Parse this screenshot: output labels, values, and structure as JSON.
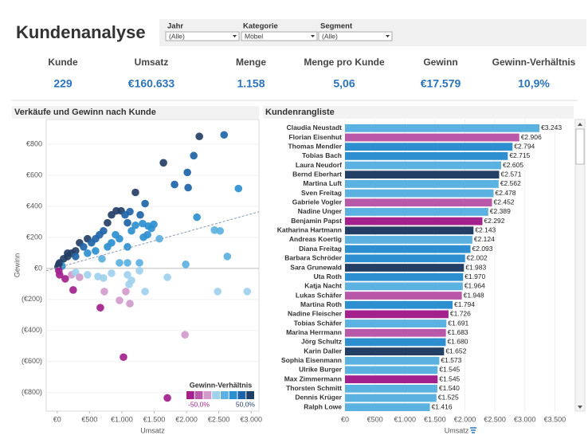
{
  "header": {
    "title": "Kundenanalyse"
  },
  "filters": [
    {
      "label": "Jahr",
      "value": "(Alle)"
    },
    {
      "label": "Kategorie",
      "value": "Möbel"
    },
    {
      "label": "Segment",
      "value": "(Alle)"
    }
  ],
  "kpis": [
    {
      "label": "Kunde",
      "value": "229"
    },
    {
      "label": "Umsatz",
      "value": "€160.633"
    },
    {
      "label": "Menge",
      "value": "1.158"
    },
    {
      "label": "Menge pro Kunde",
      "value": "5,06"
    },
    {
      "label": "Gewinn",
      "value": "€17.579"
    },
    {
      "label": "Gewinn-Verhältnis",
      "value": "10,9%"
    }
  ],
  "chart_data": [
    {
      "type": "scatter",
      "title": "Verkäufe und Gewinn nach Kunde",
      "x_label": "Umsatz",
      "y_label": "Gewinn",
      "trendline": true,
      "x": [
        2198,
        2581,
        2112,
        1643,
        2013,
        1815,
        2025,
        2803,
        1210,
        1359,
        914,
        988,
        840,
        1050,
        1124,
        1284,
        1321,
        1210,
        1457,
        1087,
        778,
        716,
        655,
        593,
        469,
        531,
        346,
        408,
        284,
        222,
        161,
        99,
        37,
        74,
        12,
        25,
        161,
        284,
        469,
        593,
        778,
        963,
        902,
        1149,
        1334,
        840,
        1087,
        1396,
        692,
        963,
        1272,
        1988,
        2161,
        2433,
        2519,
        2631,
        1087,
        1581,
        1494,
        1408,
        25,
        37,
        124,
        222,
        284,
        346,
        469,
        630,
        716,
        840,
        1087,
        1149,
        1272,
        1704,
        247,
        729,
        1112,
        1062,
        1359,
        667,
        963,
        1124,
        2482,
        2939,
        1976,
        1025,
        1704
      ],
      "values": [
        851,
        861,
        727,
        681,
        619,
        541,
        521,
        515,
        490,
        418,
        371,
        371,
        345,
        345,
        366,
        345,
        289,
        278,
        258,
        294,
        294,
        242,
        217,
        191,
        191,
        165,
        165,
        139,
        113,
        98,
        77,
        62,
        36,
        15,
        10,
        26,
        98,
        77,
        98,
        113,
        139,
        191,
        217,
        242,
        201,
        165,
        139,
        217,
        62,
        36,
        36,
        26,
        330,
        247,
        242,
        77,
        36,
        191,
        284,
        273,
        -15,
        -41,
        -67,
        -41,
        -26,
        -57,
        -41,
        -52,
        -62,
        -31,
        -41,
        -77,
        -15,
        -57,
        -139,
        -149,
        -103,
        -149,
        -149,
        -253,
        -206,
        -227,
        -149,
        -149,
        -428,
        -572,
        -835
      ],
      "xlim": [
        -170,
        3120
      ],
      "xticks": [
        {
          "value": 0,
          "label": "€0"
        },
        {
          "value": 500,
          "label": "€500"
        },
        {
          "value": 1000,
          "label": "€1.000"
        },
        {
          "value": 1500,
          "label": "€1.500"
        },
        {
          "value": 2000,
          "label": "€2.000"
        },
        {
          "value": 2500,
          "label": "€2.500"
        },
        {
          "value": 3000,
          "label": "€3.000"
        }
      ],
      "ylim": [
        -920,
        960
      ],
      "yticks": [
        {
          "value": 800,
          "label": "€800"
        },
        {
          "value": 600,
          "label": "€600"
        },
        {
          "value": 400,
          "label": "€400"
        },
        {
          "value": 200,
          "label": "€200"
        },
        {
          "value": 0,
          "label": "€0"
        },
        {
          "value": -200,
          "label": "(€200)"
        },
        {
          "value": -400,
          "label": "(€400)"
        },
        {
          "value": -600,
          "label": "(€600)"
        },
        {
          "value": -800,
          "label": "(€800)"
        }
      ],
      "legend": {
        "title": "Gewinn-Verhältnis",
        "colors": [
          "#a3218d",
          "#b957a8",
          "#d39acb",
          "#9fd0ee",
          "#5bb1e0",
          "#2d8fd0",
          "#1f64a8",
          "#243f66"
        ],
        "range": [
          {
            "value": -50,
            "label": "-50,0%"
          },
          {
            "value": 50,
            "label": "50,0%"
          }
        ]
      }
    },
    {
      "type": "bar",
      "orientation": "horizontal",
      "title": "Kundenrangliste",
      "x_label": "Umsatz",
      "categories": [
        "Claudia Neustadt",
        "Florian Eisenhut",
        "Thomas Mendler",
        "Tobias Bach",
        "Laura Neudorf",
        "Bernd Eberhart",
        "Martina Luft",
        "Sven Freitag",
        "Gabriele Vogler",
        "Nadine Unger",
        "Benjamin Papst",
        "Katharina Hartmann",
        "Andreas Koertig",
        "Diana Freitag",
        "Barbara Schröder",
        "Sara Grunewald",
        "Uta Roth",
        "Katja Nacht",
        "Lukas Schäfer",
        "Martina Roth",
        "Nadine Fleischer",
        "Tobias Schäfer",
        "Marina Herrmann",
        "Jörg Schultz",
        "Karin Daller",
        "Sophia Eisenmann",
        "Ulrike Burger",
        "Max Zimmermann",
        "Thorsten Schmitt",
        "Dennis Krüger",
        "Ralph Lowe"
      ],
      "values": [
        3243,
        2906,
        2794,
        2715,
        2605,
        2571,
        2562,
        2478,
        2452,
        2389,
        2292,
        2143,
        2124,
        2093,
        2002,
        1983,
        1970,
        1964,
        1948,
        1794,
        1726,
        1691,
        1683,
        1680,
        1652,
        1573,
        1545,
        1545,
        1540,
        1525,
        1416
      ],
      "value_labels": [
        "€3.243",
        "€2.906",
        "€2.794",
        "€2.715",
        "€2.605",
        "€2.571",
        "€2.562",
        "€2.478",
        "€2.452",
        "€2.389",
        "€2.292",
        "€2.143",
        "€2.124",
        "€2.093",
        "€2.002",
        "€1.983",
        "€1.970",
        "€1.964",
        "€1.948",
        "€1.794",
        "€1.726",
        "€1.691",
        "€1.683",
        "€1.680",
        "€1.652",
        "€1.573",
        "€1.545",
        "€1.545",
        "€1.540",
        "€1.525",
        "€1.416"
      ],
      "colors": [
        "#5bb1e0",
        "#b957a8",
        "#2d8fd0",
        "#2d8fd0",
        "#5bb1e0",
        "#243f66",
        "#5bb1e0",
        "#5bb1e0",
        "#b957a8",
        "#5bb1e0",
        "#a3218d",
        "#243f66",
        "#5bb1e0",
        "#2d8fd0",
        "#2d8fd0",
        "#243f66",
        "#2d8fd0",
        "#5bb1e0",
        "#b957a8",
        "#2d8fd0",
        "#a3218d",
        "#5bb1e0",
        "#b957a8",
        "#2d8fd0",
        "#243f66",
        "#5bb1e0",
        "#5bb1e0",
        "#a3218d",
        "#5bb1e0",
        "#5bb1e0",
        "#5bb1e0"
      ],
      "xlim": [
        0,
        3800
      ],
      "xticks": [
        {
          "value": 0,
          "label": "€0"
        },
        {
          "value": 500,
          "label": "€500"
        },
        {
          "value": 1000,
          "label": "€1.000"
        },
        {
          "value": 1500,
          "label": "€1.500"
        },
        {
          "value": 2000,
          "label": "€2.000"
        },
        {
          "value": 2500,
          "label": "€2.500"
        },
        {
          "value": 3000,
          "label": "€3.000"
        },
        {
          "value": 3500,
          "label": "€3.500"
        }
      ]
    }
  ]
}
